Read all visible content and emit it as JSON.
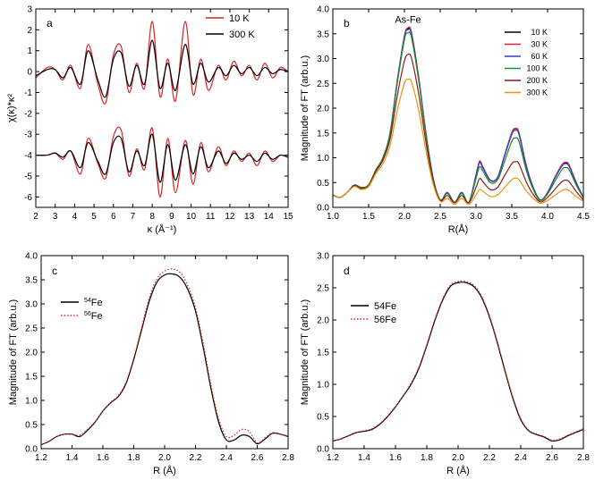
{
  "chart_data": [
    {
      "panel": "a",
      "type": "line",
      "title": "",
      "xlabel": "κ (Å⁻¹)",
      "ylabel": "χ(κ)*κ²",
      "xlim": [
        2,
        15
      ],
      "ylim": [
        -6.5,
        3
      ],
      "xticks": [
        2,
        3,
        4,
        5,
        6,
        7,
        8,
        9,
        10,
        11,
        12,
        13,
        14,
        15
      ],
      "yticks": [
        -6,
        -5,
        -4,
        -3,
        -2,
        -1,
        0,
        1,
        2,
        3
      ],
      "legend_position": "top-right",
      "series": [
        {
          "name": "10 K",
          "color": "#d62728",
          "traces": [
            {
              "x": [
                2.0,
                2.6,
                3.0,
                3.4,
                3.8,
                4.3,
                4.7,
                5.2,
                5.6,
                6.0,
                6.4,
                6.8,
                7.2,
                7.6,
                8.0,
                8.4,
                8.8,
                9.2,
                9.7,
                10.1,
                10.5,
                10.9,
                11.4,
                11.8,
                12.2,
                12.6,
                13.0,
                13.4,
                13.8,
                14.2,
                14.6,
                15.0
              ],
              "y": [
                -0.3,
                0.2,
                0.1,
                -0.4,
                0.3,
                -0.8,
                1.3,
                -0.6,
                -1.5,
                0.8,
                1.2,
                -1.0,
                0.4,
                -0.8,
                2.4,
                -1.2,
                0.6,
                -1.4,
                2.4,
                -1.1,
                0.6,
                -0.9,
                0.3,
                -0.4,
                0.5,
                -0.2,
                0.3,
                -0.4,
                0.4,
                -0.3,
                0.2,
                0.0
              ]
            },
            {
              "x": [
                2.0,
                2.6,
                3.0,
                3.4,
                3.8,
                4.3,
                4.7,
                5.2,
                5.6,
                6.0,
                6.4,
                6.8,
                7.2,
                7.6,
                8.0,
                8.4,
                8.8,
                9.2,
                9.7,
                10.1,
                10.5,
                10.9,
                11.4,
                11.8,
                12.2,
                12.6,
                13.0,
                13.4,
                13.8,
                14.2,
                14.6,
                15.0
              ],
              "y": [
                -4.0,
                -4.0,
                -3.9,
                -4.2,
                -3.8,
                -4.9,
                -3.2,
                -4.4,
                -5.1,
                -3.1,
                -2.8,
                -5.0,
                -3.7,
                -4.7,
                -2.7,
                -6.0,
                -3.2,
                -5.8,
                -3.3,
                -5.4,
                -3.4,
                -4.8,
                -3.6,
                -4.5,
                -3.8,
                -4.3,
                -3.9,
                -4.5,
                -3.8,
                -4.3,
                -4.0,
                -4.1
              ]
            }
          ]
        },
        {
          "name": "300 K",
          "color": "#000000",
          "traces": [
            {
              "x": [
                2.0,
                2.6,
                3.0,
                3.4,
                3.8,
                4.3,
                4.7,
                5.2,
                5.6,
                6.0,
                6.4,
                6.8,
                7.2,
                7.6,
                8.0,
                8.4,
                8.8,
                9.2,
                9.7,
                10.1,
                10.5,
                10.9,
                11.4,
                11.8,
                12.2,
                12.6,
                13.0,
                13.4,
                13.8,
                14.2,
                14.6,
                15.0
              ],
              "y": [
                -0.2,
                0.1,
                0.1,
                -0.3,
                0.2,
                -0.6,
                1.0,
                -0.4,
                -1.2,
                0.6,
                0.9,
                -0.7,
                0.3,
                -0.6,
                1.5,
                -0.8,
                0.4,
                -0.9,
                1.3,
                -0.6,
                0.4,
                -0.5,
                0.2,
                -0.2,
                0.3,
                -0.1,
                0.2,
                -0.2,
                0.2,
                -0.1,
                0.1,
                0.0
              ]
            },
            {
              "x": [
                2.0,
                2.6,
                3.0,
                3.4,
                3.8,
                4.3,
                4.7,
                5.2,
                5.6,
                6.0,
                6.4,
                6.8,
                7.2,
                7.6,
                8.0,
                8.4,
                8.8,
                9.2,
                9.7,
                10.1,
                10.5,
                10.9,
                11.4,
                11.8,
                12.2,
                12.6,
                13.0,
                13.4,
                13.8,
                14.2,
                14.6,
                15.0
              ],
              "y": [
                -4.0,
                -4.0,
                -3.9,
                -4.1,
                -3.8,
                -4.6,
                -3.4,
                -4.3,
                -4.9,
                -3.4,
                -3.2,
                -4.8,
                -3.8,
                -4.5,
                -3.0,
                -5.3,
                -3.5,
                -5.2,
                -3.5,
                -4.9,
                -3.6,
                -4.6,
                -3.8,
                -4.4,
                -3.9,
                -4.2,
                -4.0,
                -4.3,
                -3.9,
                -4.2,
                -4.0,
                -4.1
              ]
            }
          ]
        }
      ]
    },
    {
      "panel": "b",
      "type": "line",
      "title": "",
      "xlabel": "R(Å)",
      "ylabel": "Magnitude of FT (arb.u.)",
      "xlim": [
        1.0,
        4.5
      ],
      "ylim": [
        0,
        4.0
      ],
      "xticks": [
        1.0,
        1.5,
        2.0,
        2.5,
        3.0,
        3.5,
        4.0,
        4.5
      ],
      "yticks": [
        0.0,
        0.5,
        1.0,
        1.5,
        2.0,
        2.5,
        3.0,
        3.5,
        4.0
      ],
      "annotations": [
        {
          "text": "As-Fe",
          "x": 2.05,
          "y": 3.72
        }
      ],
      "legend_position": "top-right",
      "x": [
        1.0,
        1.1,
        1.2,
        1.3,
        1.4,
        1.5,
        1.6,
        1.7,
        1.8,
        1.9,
        2.0,
        2.05,
        2.1,
        2.2,
        2.3,
        2.4,
        2.5,
        2.6,
        2.7,
        2.8,
        2.9,
        3.0,
        3.05,
        3.1,
        3.2,
        3.3,
        3.4,
        3.5,
        3.55,
        3.6,
        3.7,
        3.8,
        3.9,
        4.0,
        4.1,
        4.2,
        4.25,
        4.3,
        4.4,
        4.5
      ],
      "series": [
        {
          "name": "10 K",
          "color": "#000000",
          "values": [
            0.25,
            0.2,
            0.3,
            0.45,
            0.4,
            0.45,
            0.75,
            1.0,
            1.5,
            2.55,
            3.45,
            3.6,
            3.5,
            2.6,
            1.5,
            0.6,
            0.15,
            0.3,
            0.1,
            0.3,
            0.1,
            0.65,
            0.92,
            0.8,
            0.55,
            0.6,
            1.05,
            1.5,
            1.58,
            1.5,
            0.85,
            0.4,
            0.15,
            0.3,
            0.6,
            0.85,
            0.9,
            0.85,
            0.5,
            0.2
          ]
        },
        {
          "name": "30 K",
          "color": "#d62728",
          "values": [
            0.25,
            0.2,
            0.3,
            0.45,
            0.4,
            0.45,
            0.75,
            1.0,
            1.5,
            2.55,
            3.45,
            3.62,
            3.52,
            2.62,
            1.5,
            0.6,
            0.15,
            0.3,
            0.1,
            0.3,
            0.1,
            0.65,
            0.93,
            0.81,
            0.55,
            0.6,
            1.05,
            1.51,
            1.59,
            1.51,
            0.86,
            0.4,
            0.15,
            0.3,
            0.6,
            0.86,
            0.91,
            0.86,
            0.5,
            0.2
          ]
        },
        {
          "name": "60 K",
          "color": "#2a3fd6",
          "values": [
            0.25,
            0.2,
            0.3,
            0.45,
            0.4,
            0.45,
            0.75,
            1.0,
            1.5,
            2.54,
            3.43,
            3.58,
            3.48,
            2.58,
            1.49,
            0.6,
            0.15,
            0.3,
            0.1,
            0.3,
            0.1,
            0.64,
            0.9,
            0.78,
            0.54,
            0.59,
            1.03,
            1.47,
            1.55,
            1.47,
            0.83,
            0.39,
            0.15,
            0.29,
            0.58,
            0.83,
            0.88,
            0.83,
            0.49,
            0.2
          ]
        },
        {
          "name": "100 K",
          "color": "#1a8a2a",
          "values": [
            0.25,
            0.2,
            0.3,
            0.45,
            0.4,
            0.45,
            0.75,
            1.0,
            1.48,
            2.5,
            3.38,
            3.52,
            3.42,
            2.55,
            1.47,
            0.58,
            0.15,
            0.28,
            0.1,
            0.28,
            0.1,
            0.58,
            0.82,
            0.72,
            0.5,
            0.55,
            0.93,
            1.33,
            1.4,
            1.33,
            0.76,
            0.36,
            0.14,
            0.27,
            0.52,
            0.76,
            0.8,
            0.76,
            0.45,
            0.19
          ]
        },
        {
          "name": "200 K",
          "color": "#8b1a1a",
          "values": [
            0.24,
            0.2,
            0.3,
            0.44,
            0.38,
            0.44,
            0.72,
            0.95,
            1.38,
            2.25,
            2.95,
            3.08,
            3.0,
            2.28,
            1.32,
            0.54,
            0.14,
            0.24,
            0.09,
            0.24,
            0.09,
            0.4,
            0.58,
            0.51,
            0.36,
            0.4,
            0.64,
            0.88,
            0.92,
            0.88,
            0.52,
            0.26,
            0.11,
            0.2,
            0.36,
            0.52,
            0.55,
            0.52,
            0.32,
            0.15
          ]
        },
        {
          "name": "300 K",
          "color": "#e8960c",
          "values": [
            0.24,
            0.2,
            0.3,
            0.42,
            0.36,
            0.42,
            0.68,
            0.88,
            1.25,
            1.95,
            2.5,
            2.58,
            2.52,
            1.95,
            1.15,
            0.48,
            0.12,
            0.18,
            0.06,
            0.18,
            0.06,
            0.25,
            0.36,
            0.32,
            0.22,
            0.25,
            0.4,
            0.56,
            0.59,
            0.56,
            0.34,
            0.18,
            0.08,
            0.14,
            0.24,
            0.34,
            0.36,
            0.34,
            0.22,
            0.12
          ]
        }
      ]
    },
    {
      "panel": "c",
      "type": "line",
      "title": "",
      "xlabel": "R (Å)",
      "ylabel": "Magnitude of FT (arb.u.)",
      "xlim": [
        1.2,
        2.8
      ],
      "ylim": [
        0,
        4.0
      ],
      "xticks": [
        1.2,
        1.4,
        1.6,
        1.8,
        2.0,
        2.2,
        2.4,
        2.6,
        2.8
      ],
      "yticks": [
        0.0,
        0.5,
        1.0,
        1.5,
        2.0,
        2.5,
        3.0,
        3.5,
        4.0
      ],
      "legend_position": "middle-left",
      "x": [
        1.2,
        1.25,
        1.3,
        1.35,
        1.4,
        1.45,
        1.5,
        1.55,
        1.6,
        1.65,
        1.7,
        1.75,
        1.8,
        1.85,
        1.9,
        1.95,
        2.0,
        2.05,
        2.1,
        2.15,
        2.2,
        2.25,
        2.3,
        2.35,
        2.4,
        2.45,
        2.5,
        2.55,
        2.6,
        2.65,
        2.7,
        2.75,
        2.8
      ],
      "series": [
        {
          "name": "⁵⁴Fe",
          "sup": "54",
          "base": "Fe",
          "color": "#000000",
          "dash": "solid",
          "values": [
            0.08,
            0.15,
            0.25,
            0.3,
            0.3,
            0.25,
            0.38,
            0.55,
            0.78,
            0.95,
            1.08,
            1.35,
            1.85,
            2.45,
            3.05,
            3.45,
            3.6,
            3.62,
            3.55,
            3.3,
            2.85,
            2.1,
            1.25,
            0.55,
            0.18,
            0.18,
            0.28,
            0.25,
            0.1,
            0.2,
            0.32,
            0.3,
            0.25
          ]
        },
        {
          "name": "⁵⁶Fe",
          "sup": "56",
          "base": "Fe",
          "color": "#d62728",
          "dash": "dot",
          "values": [
            0.08,
            0.15,
            0.25,
            0.3,
            0.3,
            0.28,
            0.4,
            0.56,
            0.78,
            0.96,
            1.1,
            1.38,
            1.88,
            2.5,
            3.12,
            3.52,
            3.68,
            3.72,
            3.65,
            3.38,
            2.92,
            2.18,
            1.32,
            0.62,
            0.25,
            0.28,
            0.4,
            0.35,
            0.12,
            0.22,
            0.33,
            0.3,
            0.26
          ]
        }
      ]
    },
    {
      "panel": "d",
      "type": "line",
      "title": "",
      "xlabel": "R (Å)",
      "ylabel": "Magnitude of FT (arb.u.)",
      "xlim": [
        1.2,
        2.8
      ],
      "ylim": [
        0,
        3.0
      ],
      "xticks": [
        1.2,
        1.4,
        1.6,
        1.8,
        2.0,
        2.2,
        2.4,
        2.6,
        2.8
      ],
      "yticks": [
        0.0,
        0.5,
        1.0,
        1.5,
        2.0,
        2.5,
        3.0
      ],
      "legend_position": "top-left",
      "x": [
        1.2,
        1.25,
        1.3,
        1.35,
        1.4,
        1.45,
        1.5,
        1.55,
        1.6,
        1.65,
        1.7,
        1.75,
        1.8,
        1.85,
        1.9,
        1.95,
        2.0,
        2.05,
        2.1,
        2.15,
        2.2,
        2.25,
        2.3,
        2.35,
        2.4,
        2.45,
        2.5,
        2.55,
        2.6,
        2.65,
        2.7,
        2.75,
        2.8
      ],
      "series": [
        {
          "name": "54Fe",
          "color": "#000000",
          "dash": "solid",
          "values": [
            0.12,
            0.15,
            0.2,
            0.25,
            0.27,
            0.3,
            0.38,
            0.5,
            0.65,
            0.82,
            1.0,
            1.25,
            1.6,
            1.98,
            2.3,
            2.52,
            2.58,
            2.58,
            2.52,
            2.35,
            2.05,
            1.65,
            1.2,
            0.78,
            0.45,
            0.28,
            0.22,
            0.18,
            0.12,
            0.14,
            0.2,
            0.25,
            0.3
          ]
        },
        {
          "name": "56Fe",
          "color": "#d62728",
          "dash": "dot",
          "values": [
            0.12,
            0.15,
            0.2,
            0.25,
            0.28,
            0.31,
            0.39,
            0.51,
            0.66,
            0.83,
            1.02,
            1.27,
            1.62,
            2.0,
            2.32,
            2.54,
            2.6,
            2.6,
            2.54,
            2.37,
            2.07,
            1.67,
            1.22,
            0.8,
            0.47,
            0.29,
            0.23,
            0.19,
            0.13,
            0.15,
            0.21,
            0.26,
            0.31
          ]
        }
      ]
    }
  ],
  "panel_labels": [
    "a",
    "b",
    "c",
    "d"
  ]
}
